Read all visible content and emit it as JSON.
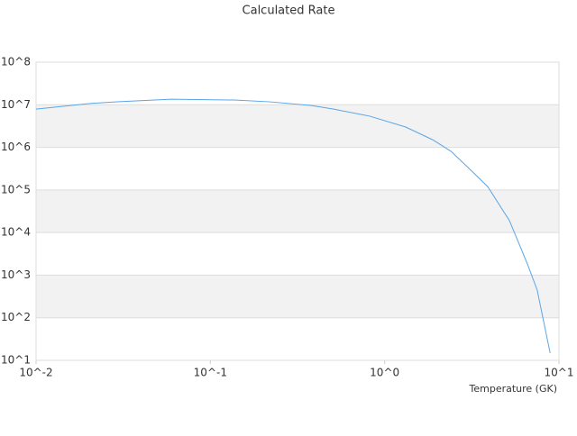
{
  "chart_data": {
    "type": "line",
    "title": "Calculated Rate",
    "x_label": "Temperature (GK)",
    "log_x": true,
    "log_y": true,
    "xlim": [
      0.01,
      10
    ],
    "ylim": [
      10,
      100000000
    ],
    "xticks": [
      {
        "value": 0.01,
        "label": "10^-2"
      },
      {
        "value": 0.1,
        "label": "10^-1"
      },
      {
        "value": 1,
        "label": "10^0"
      },
      {
        "value": 10,
        "label": "10^1"
      }
    ],
    "yticks": [
      {
        "value": 10,
        "label": "10^1"
      },
      {
        "value": 100,
        "label": "10^2"
      },
      {
        "value": 1000,
        "label": "10^3"
      },
      {
        "value": 10000,
        "label": "10^4"
      },
      {
        "value": 100000,
        "label": "10^5"
      },
      {
        "value": 1000000,
        "label": "10^6"
      },
      {
        "value": 10000000,
        "label": "10^7"
      },
      {
        "value": 100000000,
        "label": "10^8"
      }
    ],
    "band_color": "#f2f2f2",
    "series": [
      {
        "color": "#5aa5e8",
        "x": [
          0.01,
          0.0204,
          0.0292,
          0.0596,
          0.137,
          0.22,
          0.38,
          0.51,
          0.82,
          1.32,
          1.89,
          2.4,
          3.0,
          3.9,
          5.2,
          6.6,
          7.5,
          8.9
        ],
        "values": [
          7900000,
          10700000,
          11700000,
          13500000,
          12900000,
          11700000,
          9600000,
          7900000,
          5400000,
          3000000,
          1500000,
          810000,
          340000,
          120000,
          19000,
          1800,
          447,
          14.8
        ]
      }
    ]
  }
}
